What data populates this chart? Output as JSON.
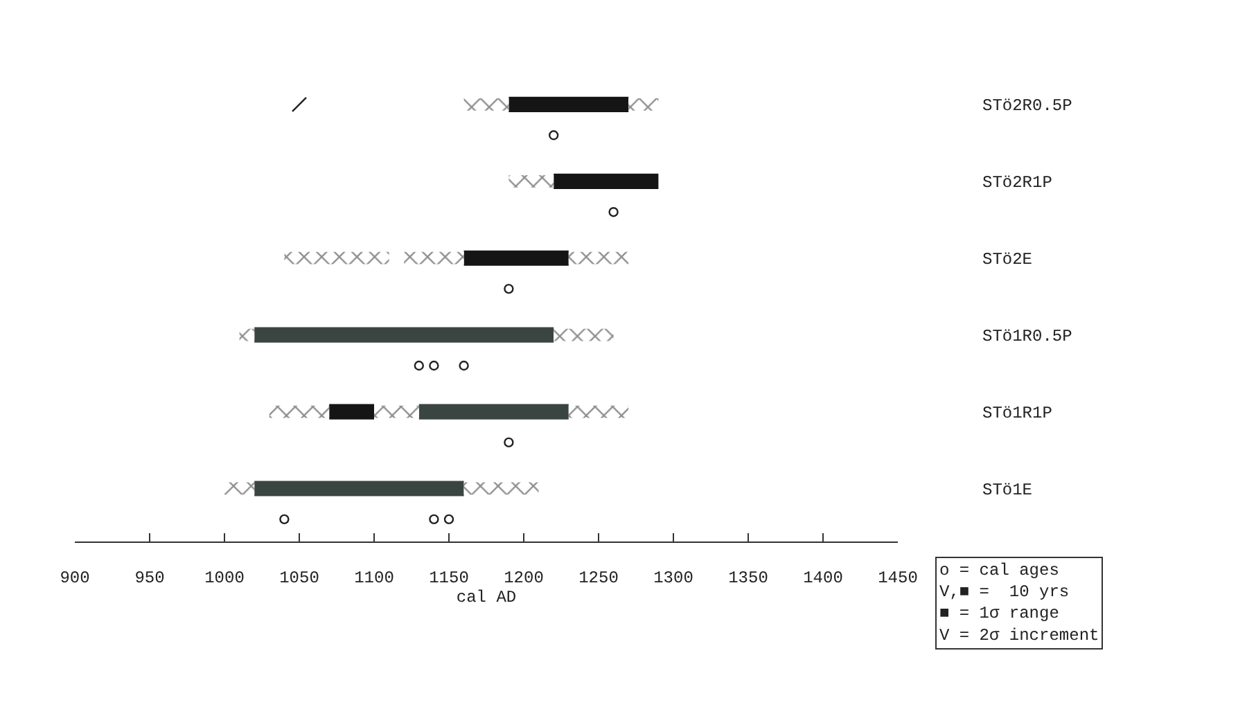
{
  "chart_data": {
    "type": "bar",
    "orientation": "horizontal",
    "xlabel": "cal AD",
    "categories": [
      "STö2R0.5P",
      "STö2R1P",
      "STö2E",
      "STö1R0.5P",
      "STö1R1P",
      "STö1E"
    ],
    "xlim": [
      900,
      1450
    ],
    "xticks": [
      900,
      950,
      1000,
      1050,
      1100,
      1150,
      1200,
      1250,
      1300,
      1350,
      1400,
      1450
    ],
    "series": [
      {
        "base": [
          1190,
          1220,
          1160,
          1020,
          1070,
          1020
        ],
        "values": [
          80,
          70,
          70,
          200,
          30,
          140
        ],
        "colors": [
          "#151515",
          "#151515",
          "#151515",
          "#3a4541",
          "#151515",
          "#3a4541"
        ]
      },
      {
        "base": [
          null,
          null,
          null,
          null,
          1130,
          null
        ],
        "values": [
          null,
          null,
          null,
          null,
          100,
          null
        ],
        "colors": [
          null,
          null,
          null,
          null,
          "#3a4541",
          null
        ]
      },
      {
        "marker": "triangle",
        "color": "#222222",
        "base": [
          1160,
          1190,
          1040,
          1010,
          1030,
          1000
        ],
        "values": [
          30,
          30,
          70,
          10,
          40,
          20
        ]
      },
      {
        "marker": "triangle",
        "color": "#222222",
        "base": [
          null,
          null,
          1120,
          null,
          1100,
          null
        ],
        "values": [
          null,
          null,
          40,
          null,
          30,
          null
        ]
      },
      {
        "marker": "triangle",
        "color": "#222222",
        "base": [
          1270,
          null,
          1230,
          1220,
          1230,
          1160
        ],
        "values": [
          20,
          null,
          40,
          40,
          40,
          50
        ]
      },
      {
        "type": "scatter",
        "color": "#222222",
        "values": [
          1050,
          null,
          null,
          null,
          null,
          null
        ]
      },
      {
        "type": "scatter",
        "marker": "circle",
        "color": "#222222",
        "values": [
          1220,
          1260,
          1190,
          1130,
          1190,
          1040
        ]
      },
      {
        "type": "scatter",
        "marker": "circle",
        "color": "#222222",
        "values": [
          null,
          null,
          null,
          1140,
          null,
          1140
        ]
      },
      {
        "type": "scatter",
        "marker": "circle",
        "color": "#222222",
        "values": [
          null,
          null,
          null,
          1160,
          null,
          1150
        ]
      }
    ],
    "annotations": [
      "o = cal ages\nV,■ =  10 yrs\n■ = 1σ range\nV = 2σ increment"
    ]
  }
}
